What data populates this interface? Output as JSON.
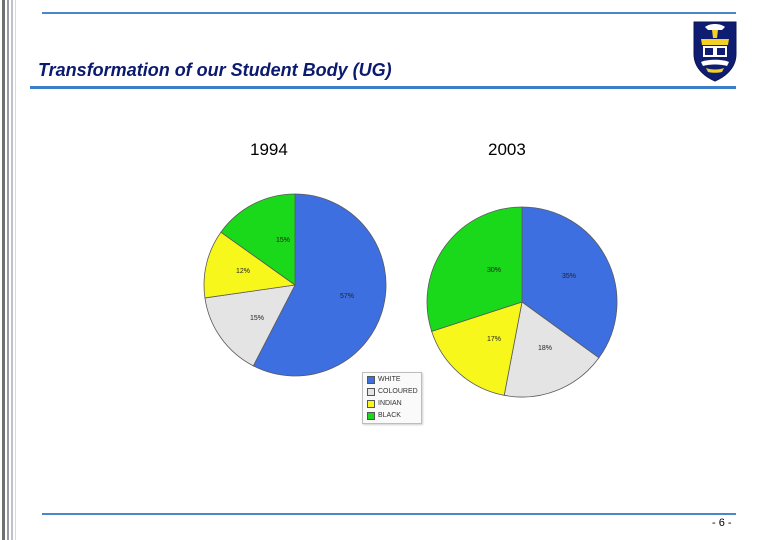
{
  "slide": {
    "title": "Transformation of our Student Body (UG)",
    "page_number": "- 6 -",
    "accent_color": "#3a7fc8",
    "title_color": "#0a1a6e",
    "logo_icon": "university-crest-icon"
  },
  "chart_data": [
    {
      "type": "pie",
      "title": "1994",
      "categories": [
        "WHITE",
        "COLOURED",
        "INDIAN",
        "BLACK"
      ],
      "values": [
        57,
        15,
        12,
        15
      ],
      "value_labels": [
        "57%",
        "15%",
        "12%",
        "15%"
      ],
      "colors": [
        "#3e6fe0",
        "#e4e4e4",
        "#f7f71c",
        "#1ad81a"
      ],
      "legend": "bottom-center"
    },
    {
      "type": "pie",
      "title": "2003",
      "categories": [
        "WHITE",
        "COLOURED",
        "INDIAN",
        "BLACK"
      ],
      "values": [
        35,
        18,
        17,
        30
      ],
      "value_labels": [
        "35%",
        "18%",
        "17%",
        "30%"
      ],
      "colors": [
        "#3e6fe0",
        "#e4e4e4",
        "#f7f71c",
        "#1ad81a"
      ],
      "legend": "bottom-center"
    }
  ],
  "legend": {
    "items": [
      {
        "label": "WHITE",
        "color": "#3e6fe0"
      },
      {
        "label": "COLOURED",
        "color": "#e4e4e4"
      },
      {
        "label": "INDIAN",
        "color": "#f7f71c"
      },
      {
        "label": "BLACK",
        "color": "#1ad81a"
      }
    ]
  }
}
